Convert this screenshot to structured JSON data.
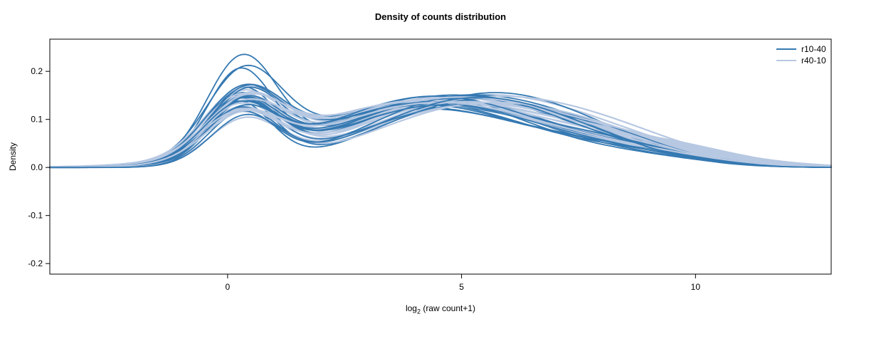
{
  "chart_data": {
    "type": "line",
    "subtype": "density-curves",
    "title": "Density of counts distribution",
    "xlabel": "log2 (raw count+1)",
    "xlabel_parts": {
      "prefix": "log",
      "sub": "2",
      "suffix": " (raw count+1)"
    },
    "ylabel": "Density",
    "xlim": [
      -3.8,
      12.9
    ],
    "ylim": [
      -0.222,
      0.267
    ],
    "xticks": {
      "values": [
        0,
        5,
        10
      ],
      "labels": [
        "0",
        "5",
        "10"
      ]
    },
    "yticks": {
      "values": [
        -0.2,
        -0.1,
        0,
        0.1,
        0.2
      ],
      "labels": [
        "-0.2",
        "-0.1",
        "0.0",
        "0.1",
        "0.2"
      ]
    },
    "grid": false,
    "box": true,
    "legend": {
      "position": "top-right",
      "entries": [
        {
          "label": "r10-40",
          "color": "#3579b2"
        },
        {
          "label": "r40-10",
          "color": "#b7c8e2"
        }
      ]
    },
    "curve_model": "y(x) = a1*exp(-((x-m1)^2)/(2*s1^2)) + a2*exp(-((x-m2)^2)/(2*s2^2)) + a3*exp(-((x-m3)^2)/(2*s3^2)); params per curve: [a1,m1,s1,a2,m2,s2,a3,m3,s3]",
    "series": [
      {
        "name": "r10-40",
        "color": "#3579b2",
        "stroke_width": 1.8,
        "curves": [
          [
            0.21,
            0.3,
            0.75,
            0.12,
            4.2,
            2.2,
            0.03,
            8.5,
            1.8
          ],
          [
            0.185,
            0.25,
            0.7,
            0.13,
            4.6,
            2.3,
            0.02,
            8.8,
            1.5
          ],
          [
            0.172,
            0.35,
            0.8,
            0.125,
            4.0,
            2.4,
            0.025,
            8.2,
            1.6
          ],
          [
            0.15,
            0.3,
            0.72,
            0.14,
            4.8,
            2.2,
            0.02,
            9.0,
            1.4
          ],
          [
            0.145,
            0.2,
            0.78,
            0.135,
            5.2,
            2.0,
            0.03,
            8.0,
            1.7
          ],
          [
            0.142,
            0.4,
            0.76,
            0.148,
            4.4,
            2.1,
            0.02,
            8.6,
            1.5
          ],
          [
            0.138,
            0.28,
            0.74,
            0.145,
            5.0,
            2.3,
            0.025,
            7.8,
            1.6
          ],
          [
            0.135,
            0.32,
            0.8,
            0.13,
            4.3,
            2.5,
            0.02,
            8.4,
            1.5
          ],
          [
            0.132,
            0.22,
            0.7,
            0.14,
            5.4,
            2.1,
            0.03,
            7.6,
            1.8
          ],
          [
            0.13,
            0.38,
            0.78,
            0.135,
            4.1,
            2.4,
            0.02,
            8.9,
            1.4
          ],
          [
            0.128,
            0.26,
            0.75,
            0.148,
            4.7,
            2.2,
            0.025,
            8.1,
            1.6
          ],
          [
            0.126,
            0.34,
            0.72,
            0.125,
            5.1,
            2.3,
            0.03,
            7.9,
            1.7
          ],
          [
            0.124,
            0.3,
            0.8,
            0.14,
            4.5,
            2.0,
            0.02,
            8.7,
            1.5
          ],
          [
            0.122,
            0.24,
            0.76,
            0.145,
            4.9,
            2.4,
            0.025,
            8.3,
            1.6
          ],
          [
            0.12,
            0.36,
            0.74,
            0.13,
            4.2,
            2.2,
            0.03,
            8.5,
            1.4
          ],
          [
            0.118,
            0.28,
            0.78,
            0.135,
            5.3,
            2.1,
            0.02,
            7.7,
            1.7
          ],
          [
            0.115,
            0.32,
            0.7,
            0.148,
            4.4,
            2.3,
            0.025,
            8.8,
            1.5
          ],
          [
            0.112,
            0.26,
            0.75,
            0.14,
            4.8,
            2.5,
            0.03,
            8.0,
            1.6
          ],
          [
            0.11,
            0.34,
            0.8,
            0.13,
            4.6,
            2.2,
            0.02,
            8.6,
            1.4
          ],
          [
            0.108,
            0.3,
            0.72,
            0.145,
            5.0,
            2.0,
            0.025,
            8.2,
            1.7
          ],
          [
            0.105,
            0.22,
            0.76,
            0.135,
            4.3,
            2.4,
            0.03,
            8.4,
            1.5
          ],
          [
            0.1,
            0.38,
            0.74,
            0.14,
            5.2,
            2.1,
            0.02,
            7.8,
            1.6
          ]
        ]
      },
      {
        "name": "r40-10",
        "color": "#b7c8e2",
        "stroke_width": 2.2,
        "curves": [
          [
            0.135,
            0.3,
            0.85,
            0.13,
            4.8,
            2.5,
            0.03,
            9.0,
            1.8
          ],
          [
            0.132,
            0.35,
            0.8,
            0.135,
            4.4,
            2.6,
            0.025,
            9.3,
            1.6
          ],
          [
            0.13,
            0.25,
            0.82,
            0.14,
            5.0,
            2.4,
            0.03,
            8.7,
            1.7
          ],
          [
            0.128,
            0.4,
            0.78,
            0.13,
            4.6,
            2.7,
            0.02,
            9.5,
            1.5
          ],
          [
            0.126,
            0.3,
            0.84,
            0.145,
            5.4,
            2.3,
            0.025,
            8.5,
            1.8
          ],
          [
            0.124,
            0.28,
            0.8,
            0.135,
            4.2,
            2.6,
            0.03,
            9.1,
            1.6
          ],
          [
            0.122,
            0.36,
            0.82,
            0.14,
            5.2,
            2.4,
            0.02,
            8.9,
            1.7
          ],
          [
            0.12,
            0.24,
            0.78,
            0.13,
            4.7,
            2.7,
            0.03,
            9.4,
            1.5
          ],
          [
            0.118,
            0.32,
            0.84,
            0.145,
            4.9,
            2.3,
            0.025,
            8.6,
            1.8
          ],
          [
            0.116,
            0.38,
            0.8,
            0.135,
            4.3,
            2.5,
            0.02,
            9.2,
            1.6
          ],
          [
            0.114,
            0.26,
            0.82,
            0.14,
            5.5,
            2.4,
            0.03,
            8.4,
            1.7
          ],
          [
            0.112,
            0.34,
            0.78,
            0.13,
            4.5,
            2.6,
            0.025,
            9.6,
            1.5
          ],
          [
            0.11,
            0.3,
            0.84,
            0.145,
            5.1,
            2.2,
            0.02,
            8.8,
            1.8
          ],
          [
            0.108,
            0.22,
            0.8,
            0.135,
            4.8,
            2.5,
            0.03,
            9.0,
            1.6
          ],
          [
            0.106,
            0.36,
            0.82,
            0.14,
            4.4,
            2.7,
            0.025,
            9.3,
            1.7
          ],
          [
            0.104,
            0.28,
            0.78,
            0.13,
            5.3,
            2.3,
            0.02,
            8.5,
            1.5
          ],
          [
            0.102,
            0.34,
            0.84,
            0.145,
            4.6,
            2.6,
            0.03,
            9.1,
            1.8
          ],
          [
            0.1,
            0.26,
            0.8,
            0.135,
            5.0,
            2.4,
            0.025,
            8.7,
            1.6
          ],
          [
            0.098,
            0.32,
            0.82,
            0.14,
            4.2,
            2.5,
            0.02,
            9.4,
            1.7
          ],
          [
            0.095,
            0.38,
            0.78,
            0.13,
            5.4,
            2.2,
            0.03,
            8.3,
            1.5
          ],
          [
            0.092,
            0.24,
            0.84,
            0.145,
            4.9,
            2.6,
            0.025,
            9.2,
            1.8
          ],
          [
            0.088,
            0.3,
            0.8,
            0.135,
            4.5,
            2.4,
            0.02,
            8.9,
            1.6
          ]
        ]
      }
    ]
  }
}
